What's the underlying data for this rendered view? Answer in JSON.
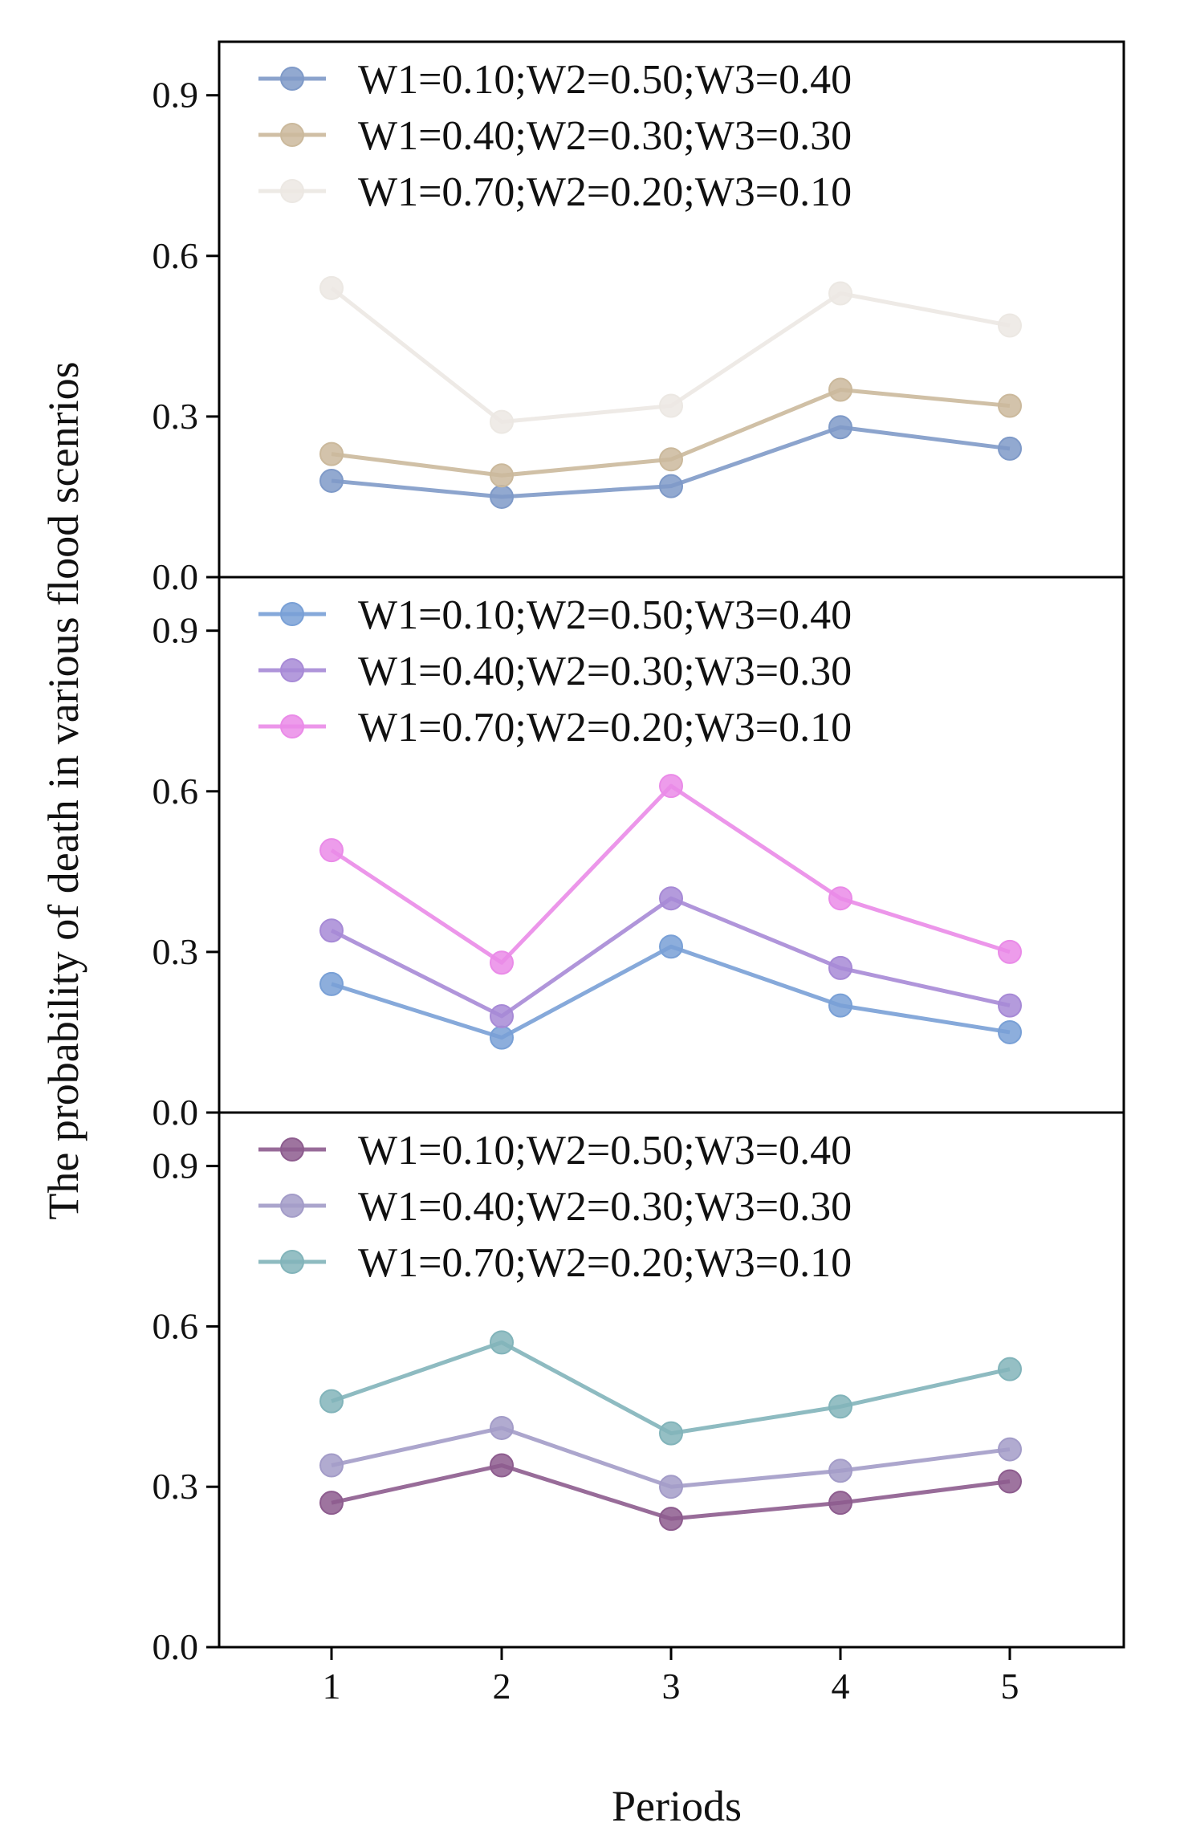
{
  "chart_data": {
    "type": "line",
    "xlabel": "Periods",
    "ylabel": "The probability of death in various flood scenrios",
    "x": [
      1,
      2,
      3,
      4,
      5
    ],
    "x_tick_labels": [
      "1",
      "2",
      "3",
      "4",
      "5"
    ],
    "ylim": [
      0,
      1.0
    ],
    "y_ticks": [
      0.0,
      0.3,
      0.6,
      0.9
    ],
    "y_tick_labels": [
      "0.0",
      "0.3",
      "0.6",
      "0.9"
    ],
    "legend_position": "top-left",
    "panels": [
      {
        "series": [
          {
            "name": "W1=0.10;W2=0.50;W3=0.40",
            "color": "#7f9ac8",
            "values": [
              0.18,
              0.15,
              0.17,
              0.28,
              0.24
            ]
          },
          {
            "name": "W1=0.40;W2=0.30;W3=0.30",
            "color": "#cbb99c",
            "values": [
              0.23,
              0.19,
              0.22,
              0.35,
              0.32
            ]
          },
          {
            "name": "W1=0.70;W2=0.20;W3=0.10",
            "color": "#ece8e3",
            "values": [
              0.54,
              0.29,
              0.32,
              0.53,
              0.47
            ]
          }
        ]
      },
      {
        "series": [
          {
            "name": "W1=0.10;W2=0.50;W3=0.40",
            "color": "#79a0d6",
            "values": [
              0.24,
              0.14,
              0.31,
              0.2,
              0.15
            ]
          },
          {
            "name": "W1=0.40;W2=0.30;W3=0.30",
            "color": "#a78ad6",
            "values": [
              0.34,
              0.18,
              0.4,
              0.27,
              0.2
            ]
          },
          {
            "name": "W1=0.70;W2=0.20;W3=0.10",
            "color": "#ea8be8",
            "values": [
              0.49,
              0.28,
              0.61,
              0.4,
              0.3
            ]
          }
        ]
      },
      {
        "series": [
          {
            "name": "W1=0.10;W2=0.50;W3=0.40",
            "color": "#8d5c8e",
            "values": [
              0.27,
              0.34,
              0.24,
              0.27,
              0.31
            ]
          },
          {
            "name": "W1=0.40;W2=0.30;W3=0.30",
            "color": "#a39cc8",
            "values": [
              0.34,
              0.41,
              0.3,
              0.33,
              0.37
            ]
          },
          {
            "name": "W1=0.70;W2=0.20;W3=0.10",
            "color": "#82b4ba",
            "values": [
              0.46,
              0.57,
              0.4,
              0.45,
              0.52
            ]
          }
        ]
      }
    ]
  }
}
